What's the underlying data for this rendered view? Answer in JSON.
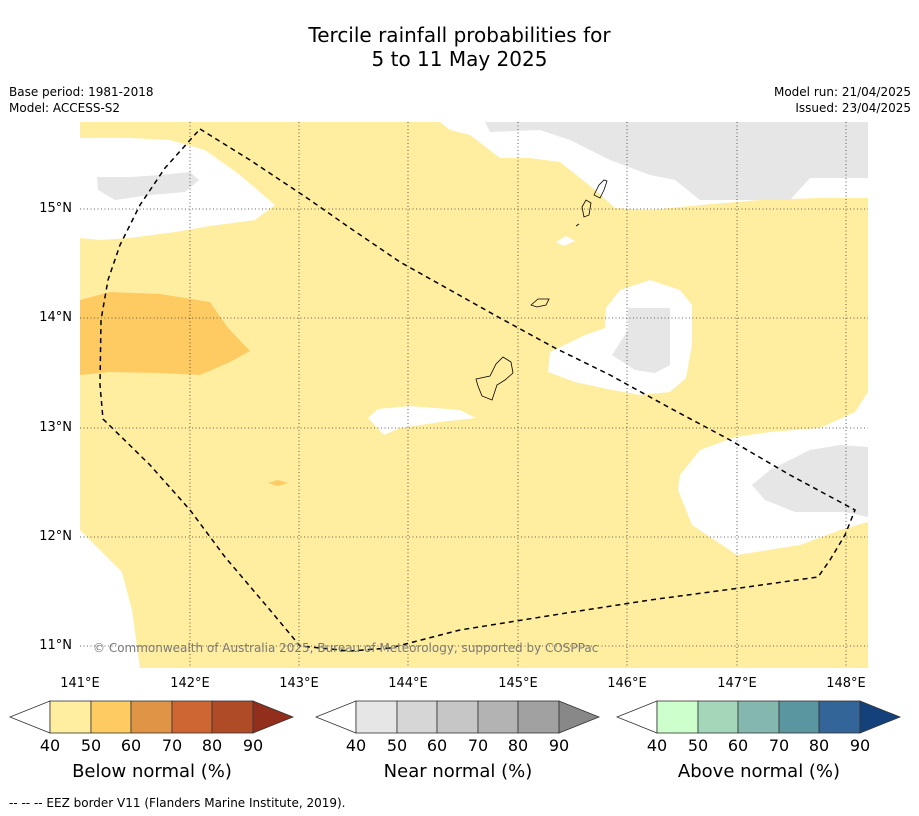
{
  "title_line1": "Tercile rainfall probabilities for",
  "title_line2": "5 to 11 May 2025",
  "base_period": "Base period: 1981-2018",
  "model": "Model: ACCESS-S2",
  "model_run": "Model run: 21/04/2025",
  "issued": "Issued: 23/04/2025",
  "lat_labels": [
    "15°N",
    "14°N",
    "13°N",
    "12°N",
    "11°N"
  ],
  "lon_labels": [
    "141°E",
    "142°E",
    "143°E",
    "144°E",
    "145°E",
    "146°E",
    "147°E",
    "148°E"
  ],
  "credit": "© Commonwealth of Australia 2025, Bureau of Meteorology, supported by COSPPac",
  "colorbars": [
    {
      "label": "Below normal (%)",
      "ticks": [
        "40",
        "50",
        "60",
        "70",
        "80",
        "90"
      ],
      "colors": [
        "#ffffff",
        "#ffeda0",
        "#fecb62",
        "#e09446",
        "#cd6632",
        "#b04b27",
        "#922e1c"
      ]
    },
    {
      "label": "Near normal (%)",
      "ticks": [
        "40",
        "50",
        "60",
        "70",
        "80",
        "90"
      ],
      "colors": [
        "#ffffff",
        "#e6e6e6",
        "#d6d6d6",
        "#c6c6c6",
        "#b3b3b3",
        "#a1a1a1",
        "#888888"
      ]
    },
    {
      "label": "Above normal (%)",
      "ticks": [
        "40",
        "50",
        "60",
        "70",
        "80",
        "90"
      ],
      "colors": [
        "#ffffff",
        "#ccffcc",
        "#a4d6ba",
        "#84b7ae",
        "#5a96a0",
        "#346598",
        "#15417b"
      ]
    }
  ],
  "legend_text": "--  --  -- EEZ border V11 (Flanders Marine Institute, 2019).",
  "map_colors": {
    "below_50": "#ffeda0",
    "below_60": "#fecb62",
    "near_50": "#e6e6e6",
    "eez_line": "#000000"
  }
}
